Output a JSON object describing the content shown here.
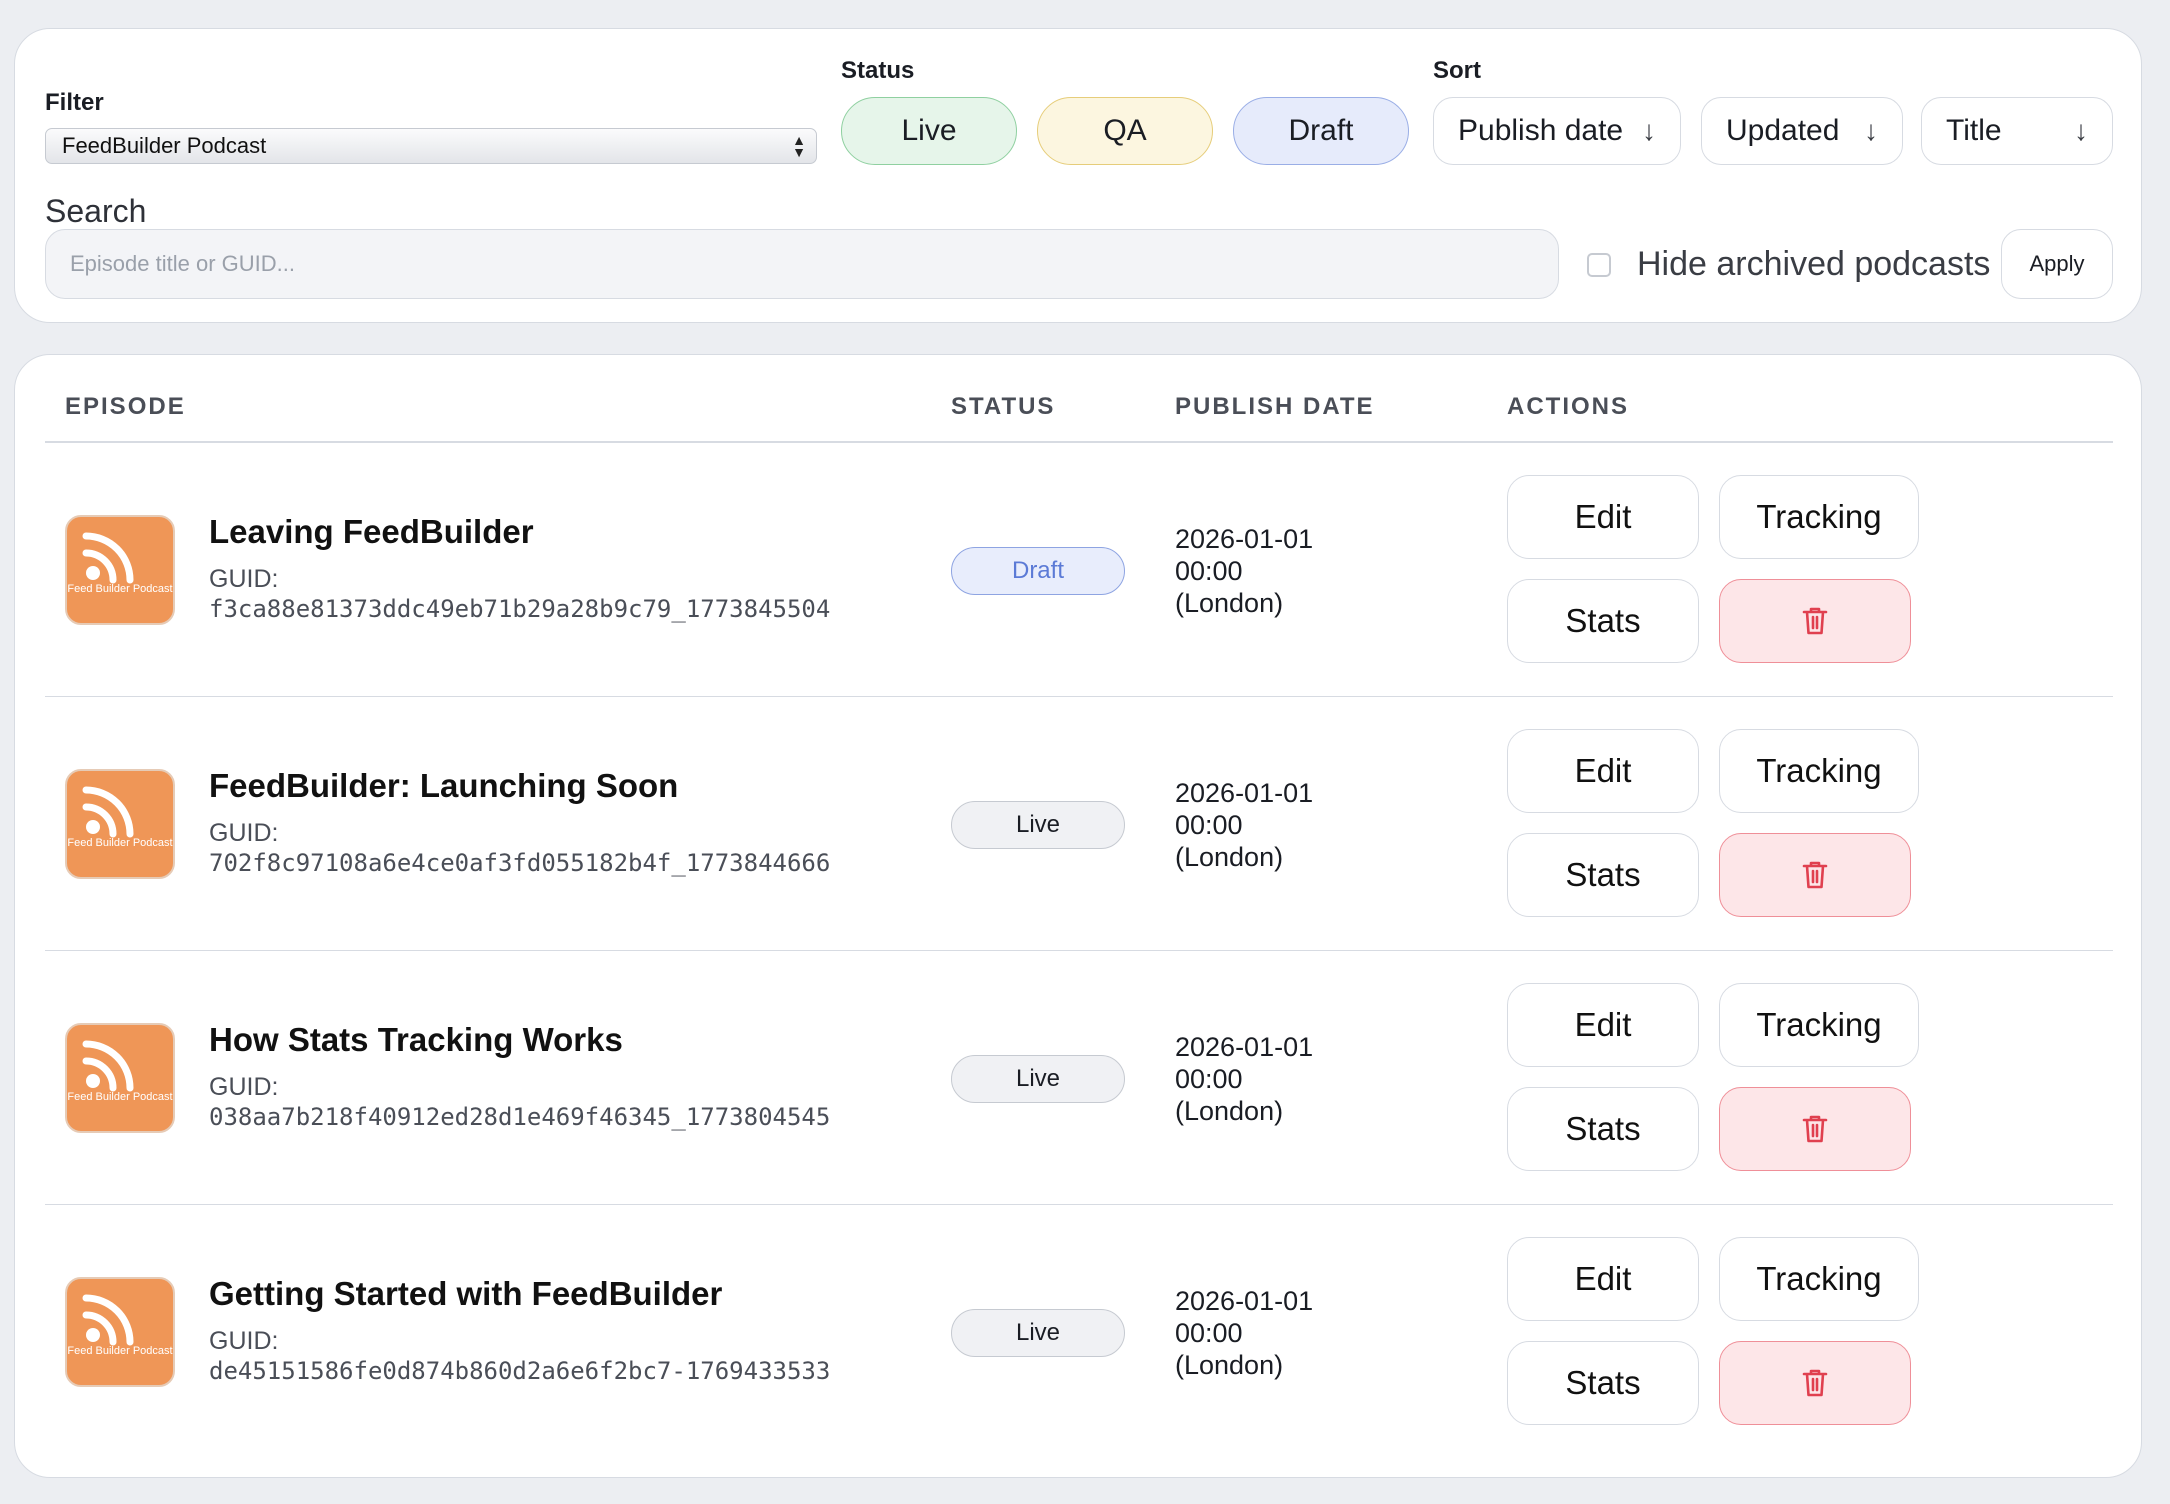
{
  "filters": {
    "filter_label": "Filter",
    "podcast_select_value": "FeedBuilder Podcast",
    "status_label": "Status",
    "status_options": [
      "Live",
      "QA",
      "Draft"
    ],
    "sort_label": "Sort",
    "sort_options": [
      "Publish date",
      "Updated",
      "Title"
    ],
    "search_label": "Search",
    "search_placeholder": "Episode title or GUID...",
    "hide_archived_label": "Hide archived podcasts",
    "apply_label": "Apply"
  },
  "colors": {
    "live_bg": "#e6f5ea",
    "qa_bg": "#fcf6e0",
    "draft_bg": "#e6ebfb",
    "thumb_orange": "#ef9657",
    "delete_red": "#e0404f"
  },
  "table": {
    "columns": [
      "EPISODE",
      "STATUS",
      "PUBLISH DATE",
      "ACTIONS"
    ],
    "guid_label": "GUID:",
    "thumb_text": "Feed Builder Podcast",
    "actions": {
      "edit": "Edit",
      "tracking": "Tracking",
      "stats": "Stats",
      "delete_icon": "trash-icon"
    },
    "rows": [
      {
        "title": "Leaving FeedBuilder",
        "guid": "f3ca88e81373ddc49eb71b29a28b9c79_1773845504",
        "status": "Draft",
        "date": "2026-01-01",
        "time": "00:00",
        "tz": "(London)"
      },
      {
        "title": "FeedBuilder: Launching Soon",
        "guid": "702f8c97108a6e4ce0af3fd055182b4f_1773844666",
        "status": "Live",
        "date": "2026-01-01",
        "time": "00:00",
        "tz": "(London)"
      },
      {
        "title": "How Stats Tracking Works",
        "guid": "038aa7b218f40912ed28d1e469f46345_1773804545",
        "status": "Live",
        "date": "2026-01-01",
        "time": "00:00",
        "tz": "(London)"
      },
      {
        "title": "Getting Started with FeedBuilder",
        "guid": "de45151586fe0d874b860d2a6e6f2bc7-1769433533",
        "status": "Live",
        "date": "2026-01-01",
        "time": "00:00",
        "tz": "(London)"
      }
    ]
  }
}
